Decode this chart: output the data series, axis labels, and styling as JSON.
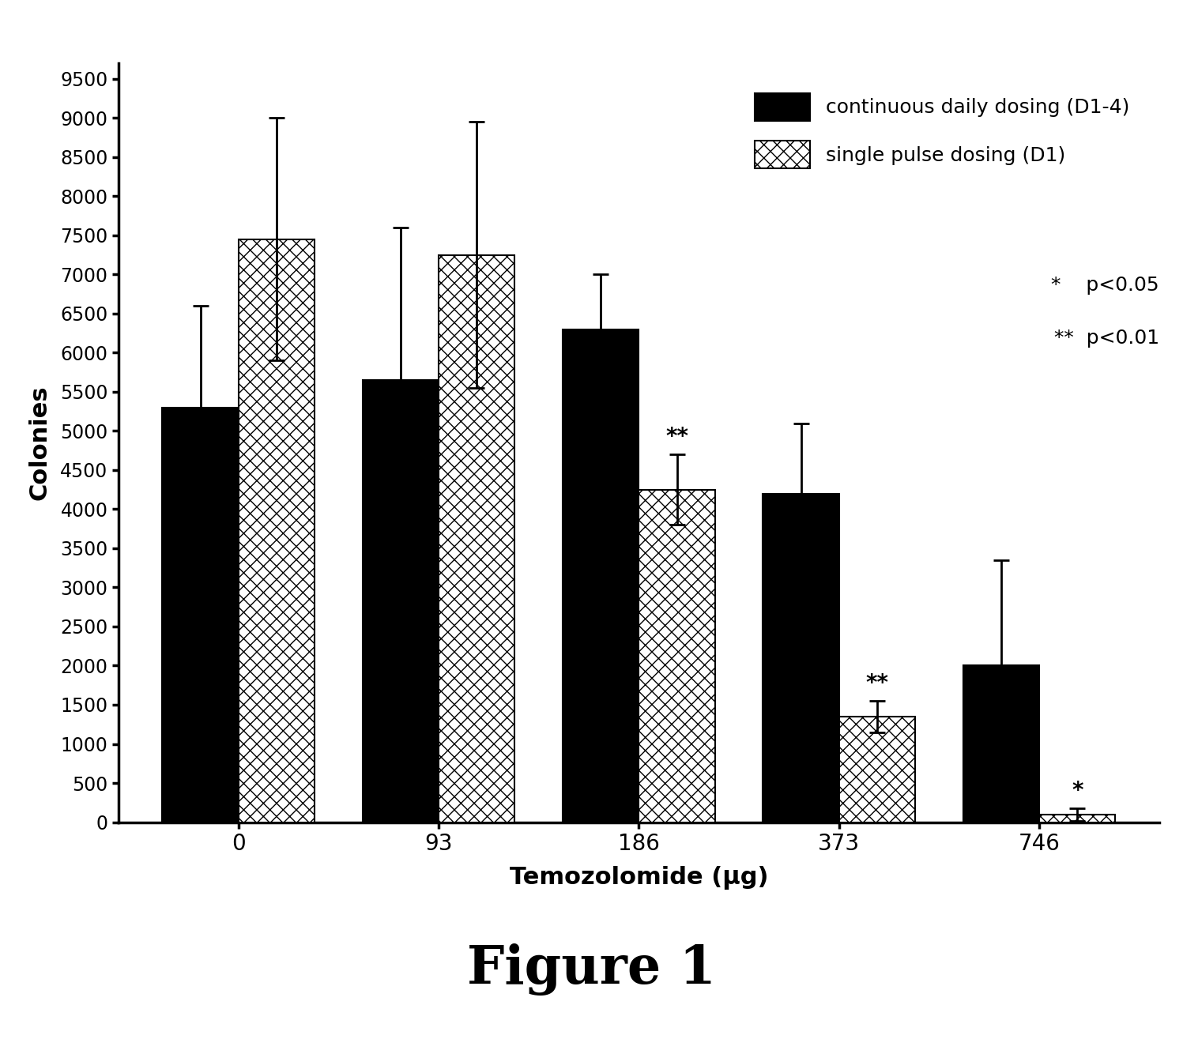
{
  "categories": [
    "0",
    "93",
    "186",
    "373",
    "746"
  ],
  "continuous_values": [
    5300,
    5650,
    6300,
    4200,
    2000
  ],
  "continuous_errors": [
    1300,
    1950,
    700,
    900,
    1350
  ],
  "pulse_values": [
    7450,
    7250,
    4250,
    1350,
    100
  ],
  "pulse_errors": [
    1550,
    1700,
    450,
    200,
    80
  ],
  "ylabel": "Colonies",
  "xlabel": "Temozolomide (μg)",
  "ylim": [
    0,
    9700
  ],
  "yticks": [
    0,
    500,
    1000,
    1500,
    2000,
    2500,
    3000,
    3500,
    4000,
    4500,
    5000,
    5500,
    6000,
    6500,
    7000,
    7500,
    8000,
    8500,
    9000,
    9500
  ],
  "figure_label": "Figure 1",
  "bar_color_continuous": "#000000",
  "bar_color_pulse": "#ffffff",
  "bar_edge_color": "#000000",
  "legend_label_continuous": "continuous daily dosing (D1-4)",
  "legend_label_pulse": "single pulse dosing (D1)",
  "sig_labels_pulse": {
    "186": "**",
    "373": "**",
    "746": "*"
  },
  "sig_labels_continuous": {},
  "bar_width": 0.38,
  "background_color": "#ffffff"
}
